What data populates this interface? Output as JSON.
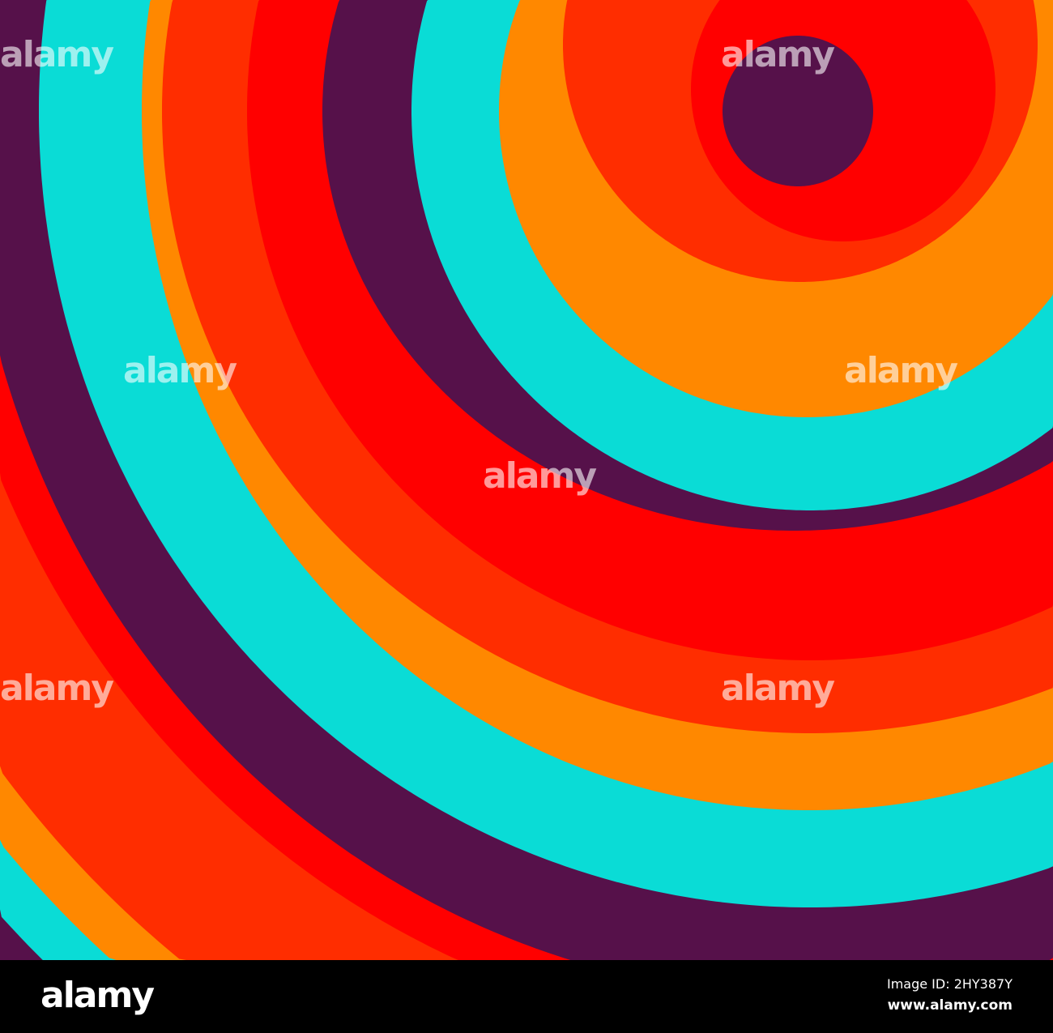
{
  "image": {
    "colors": {
      "purple": "#56114a",
      "cyan": "#0adcd6",
      "orange": "#ff8800",
      "red_orange": "#ff2d00",
      "red": "#ff0000"
    },
    "watermark_text": "alamy"
  },
  "footer": {
    "logo": "alamy",
    "image_id": "Image ID: 2HY387Y",
    "site": "www.alamy.com"
  }
}
